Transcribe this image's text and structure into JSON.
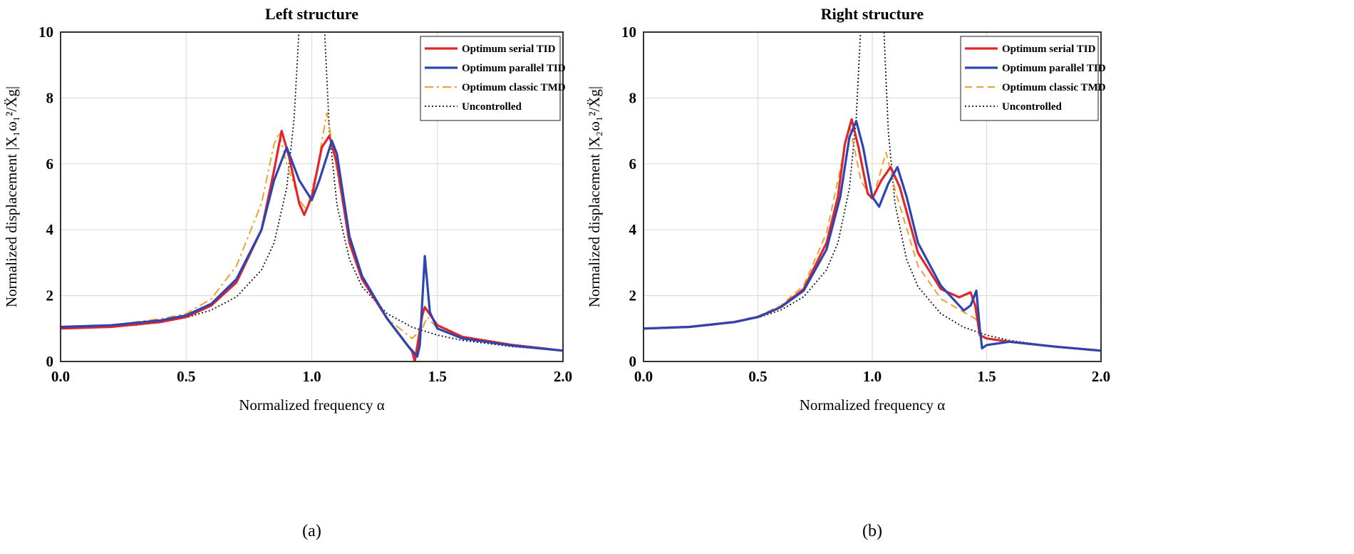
{
  "colors": {
    "serial": "#e0262b",
    "parallel": "#2e44b0",
    "tmd": "#f0a030",
    "uncontrolled": "#111111",
    "grid": "#dddddd"
  },
  "chart_data": [
    {
      "type": "line",
      "title": "Left structure",
      "caption": "(a)",
      "xlabel": "Normalized frequency α",
      "ylabel": "Normalized displacement |X₁ω₁²/Ẍg|",
      "xlim": [
        0,
        2
      ],
      "ylim": [
        0,
        10
      ],
      "xticks": [
        "0.0",
        "0.5",
        "1.0",
        "1.5",
        "2.0"
      ],
      "yticks": [
        "0",
        "2",
        "4",
        "6",
        "8",
        "10"
      ],
      "grid": true,
      "legend_position": "top-right",
      "series": [
        {
          "name": "Optimum serial TID",
          "style": "solid",
          "color_key": "serial",
          "x": [
            0,
            0.2,
            0.4,
            0.5,
            0.6,
            0.7,
            0.8,
            0.85,
            0.88,
            0.91,
            0.95,
            0.97,
            1.0,
            1.04,
            1.07,
            1.1,
            1.15,
            1.2,
            1.3,
            1.35,
            1.4,
            1.41,
            1.44,
            1.45,
            1.5,
            1.6,
            1.8,
            2.0
          ],
          "y": [
            1.0,
            1.05,
            1.2,
            1.35,
            1.7,
            2.4,
            4.0,
            5.8,
            7.0,
            6.2,
            4.8,
            4.45,
            5.0,
            6.5,
            6.85,
            6.0,
            3.6,
            2.5,
            1.3,
            0.8,
            0.3,
            0.0,
            1.4,
            1.65,
            1.1,
            0.75,
            0.5,
            0.33
          ]
        },
        {
          "name": "Optimum parallel TID",
          "style": "solid",
          "color_key": "parallel",
          "x": [
            0,
            0.2,
            0.4,
            0.5,
            0.6,
            0.7,
            0.8,
            0.85,
            0.9,
            0.95,
            1.0,
            1.03,
            1.08,
            1.1,
            1.15,
            1.2,
            1.3,
            1.38,
            1.42,
            1.43,
            1.45,
            1.47,
            1.5,
            1.6,
            1.8,
            2.0
          ],
          "y": [
            1.05,
            1.1,
            1.25,
            1.4,
            1.75,
            2.5,
            4.0,
            5.5,
            6.5,
            5.5,
            4.9,
            5.5,
            6.7,
            6.3,
            3.8,
            2.6,
            1.3,
            0.5,
            0.15,
            0.5,
            3.2,
            1.5,
            1.0,
            0.7,
            0.48,
            0.33
          ]
        },
        {
          "name": "Optimum classic TMD",
          "style": "dashdot",
          "color_key": "tmd",
          "x": [
            0,
            0.2,
            0.4,
            0.5,
            0.6,
            0.7,
            0.8,
            0.85,
            0.87,
            0.9,
            0.95,
            0.98,
            1.02,
            1.06,
            1.1,
            1.15,
            1.2,
            1.3,
            1.4,
            1.44,
            1.46,
            1.5,
            1.6,
            1.8,
            2.0
          ],
          "y": [
            1.05,
            1.1,
            1.3,
            1.45,
            1.9,
            2.9,
            4.8,
            6.6,
            6.95,
            6.0,
            4.9,
            4.6,
            5.8,
            7.55,
            5.8,
            3.6,
            2.5,
            1.3,
            0.7,
            1.0,
            1.35,
            1.0,
            0.72,
            0.48,
            0.33
          ]
        },
        {
          "name": "Uncontrolled",
          "style": "dotted",
          "color_key": "uncontrolled",
          "x": [
            0,
            0.3,
            0.5,
            0.6,
            0.7,
            0.8,
            0.85,
            0.9,
            0.93,
            0.95,
            0.97,
            1.03,
            1.05,
            1.07,
            1.1,
            1.15,
            1.2,
            1.3,
            1.4,
            1.5,
            1.6,
            1.8,
            2.0
          ],
          "y": [
            1.0,
            1.1,
            1.33,
            1.56,
            1.96,
            2.78,
            3.6,
            5.26,
            7.4,
            10.2,
            16,
            16,
            10.2,
            7.0,
            4.76,
            3.1,
            2.27,
            1.45,
            1.04,
            0.8,
            0.64,
            0.45,
            0.33
          ]
        }
      ]
    },
    {
      "type": "line",
      "title": "Right structure",
      "caption": "(b)",
      "xlabel": "Normalized frequency α",
      "ylabel": "Normalized displacement |X₂ω₁²/Ẍg|",
      "xlim": [
        0,
        2
      ],
      "ylim": [
        0,
        10
      ],
      "xticks": [
        "0.0",
        "0.5",
        "1.0",
        "1.5",
        "2.0"
      ],
      "yticks": [
        "0",
        "2",
        "4",
        "6",
        "8",
        "10"
      ],
      "grid": true,
      "legend_position": "top-right",
      "series": [
        {
          "name": "Optimum serial TID",
          "style": "solid",
          "color_key": "serial",
          "x": [
            0,
            0.2,
            0.4,
            0.5,
            0.6,
            0.7,
            0.8,
            0.85,
            0.88,
            0.91,
            0.94,
            0.98,
            1.0,
            1.04,
            1.08,
            1.12,
            1.2,
            1.3,
            1.38,
            1.43,
            1.45,
            1.47,
            1.5,
            1.6,
            1.8,
            2.0
          ],
          "y": [
            1.0,
            1.05,
            1.2,
            1.35,
            1.65,
            2.2,
            3.6,
            5.0,
            6.6,
            7.35,
            6.5,
            5.1,
            4.95,
            5.5,
            5.9,
            5.3,
            3.3,
            2.2,
            1.95,
            2.1,
            1.7,
            0.8,
            0.7,
            0.6,
            0.45,
            0.33
          ]
        },
        {
          "name": "Optimum parallel TID",
          "style": "solid",
          "color_key": "parallel",
          "x": [
            0,
            0.2,
            0.4,
            0.5,
            0.6,
            0.7,
            0.8,
            0.86,
            0.9,
            0.93,
            0.96,
            1.0,
            1.03,
            1.07,
            1.11,
            1.15,
            1.2,
            1.3,
            1.4,
            1.43,
            1.455,
            1.47,
            1.48,
            1.5,
            1.6,
            1.8,
            2.0
          ],
          "y": [
            1.0,
            1.05,
            1.2,
            1.35,
            1.65,
            2.15,
            3.4,
            5.0,
            6.8,
            7.3,
            6.5,
            5.0,
            4.7,
            5.4,
            5.9,
            5.0,
            3.6,
            2.3,
            1.55,
            1.7,
            2.15,
            1.0,
            0.4,
            0.5,
            0.6,
            0.45,
            0.33
          ]
        },
        {
          "name": "Optimum classic TMD",
          "style": "dashed",
          "color_key": "tmd",
          "x": [
            0,
            0.2,
            0.4,
            0.5,
            0.6,
            0.7,
            0.8,
            0.85,
            0.9,
            0.95,
            1.0,
            1.03,
            1.06,
            1.1,
            1.2,
            1.3,
            1.4,
            1.45,
            1.48,
            1.5,
            1.6,
            1.8,
            2.0
          ],
          "y": [
            1.0,
            1.05,
            1.22,
            1.37,
            1.7,
            2.3,
            3.9,
            5.5,
            7.2,
            5.5,
            4.9,
            5.6,
            6.35,
            5.2,
            2.9,
            1.9,
            1.5,
            1.3,
            0.75,
            0.7,
            0.6,
            0.45,
            0.33
          ]
        },
        {
          "name": "Uncontrolled",
          "style": "dotted",
          "color_key": "uncontrolled",
          "x": [
            0,
            0.3,
            0.5,
            0.6,
            0.7,
            0.8,
            0.85,
            0.9,
            0.93,
            0.95,
            0.97,
            1.03,
            1.05,
            1.07,
            1.1,
            1.15,
            1.2,
            1.3,
            1.4,
            1.5,
            1.6,
            1.8,
            2.0
          ],
          "y": [
            1.0,
            1.1,
            1.33,
            1.56,
            1.96,
            2.78,
            3.6,
            5.26,
            7.4,
            10.2,
            16,
            16,
            10.2,
            7.0,
            4.76,
            3.1,
            2.27,
            1.45,
            1.04,
            0.8,
            0.64,
            0.45,
            0.33
          ]
        }
      ]
    }
  ]
}
